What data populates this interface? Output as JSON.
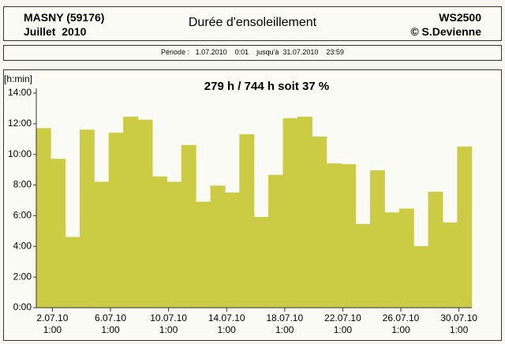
{
  "header": {
    "station": "MASNY (59176)",
    "month": "Juillet  2010",
    "title": "Durée d'ensoleillement",
    "device": "WS2500",
    "author": "© S.Devienne",
    "period": "Période :   1.07.2010    0:01    jusqu'à  31.07.2010    23:59"
  },
  "chart_data": {
    "type": "bar",
    "title": "279 h / 744 h  soit  37 %",
    "y_label": "[h:min]",
    "color": "#cccc44",
    "categories": [
      null,
      "2.07.10\n1:00",
      null,
      null,
      null,
      "6.07.10\n1:00",
      null,
      null,
      null,
      "10.07.10\n1:00",
      null,
      null,
      null,
      "14.07.10\n1:00",
      null,
      null,
      null,
      "18.07.10\n1:00",
      null,
      null,
      null,
      "22.07.10\n1:00",
      null,
      null,
      null,
      "26.07.10\n1:00",
      null,
      null,
      null,
      "30.07.10\n1:00"
    ],
    "values": [
      11.7,
      9.7,
      4.6,
      11.6,
      8.2,
      11.4,
      12.45,
      12.25,
      8.55,
      8.2,
      10.6,
      6.9,
      7.95,
      7.5,
      11.3,
      5.9,
      8.65,
      12.35,
      12.45,
      11.15,
      9.4,
      9.35,
      5.45,
      8.95,
      6.2,
      6.45,
      4.0,
      7.55,
      5.55,
      10.5
    ],
    "ylim": [
      0,
      14
    ],
    "yticks": [
      {
        "value": 0,
        "label": "0:00"
      },
      {
        "value": 2,
        "label": "2:00"
      },
      {
        "value": 4,
        "label": "4:00"
      },
      {
        "value": 6,
        "label": "6:00"
      },
      {
        "value": 8,
        "label": "8:00"
      },
      {
        "value": 10,
        "label": "10:00"
      },
      {
        "value": 12,
        "label": "12:00"
      },
      {
        "value": 14,
        "label": "14:00"
      }
    ]
  }
}
